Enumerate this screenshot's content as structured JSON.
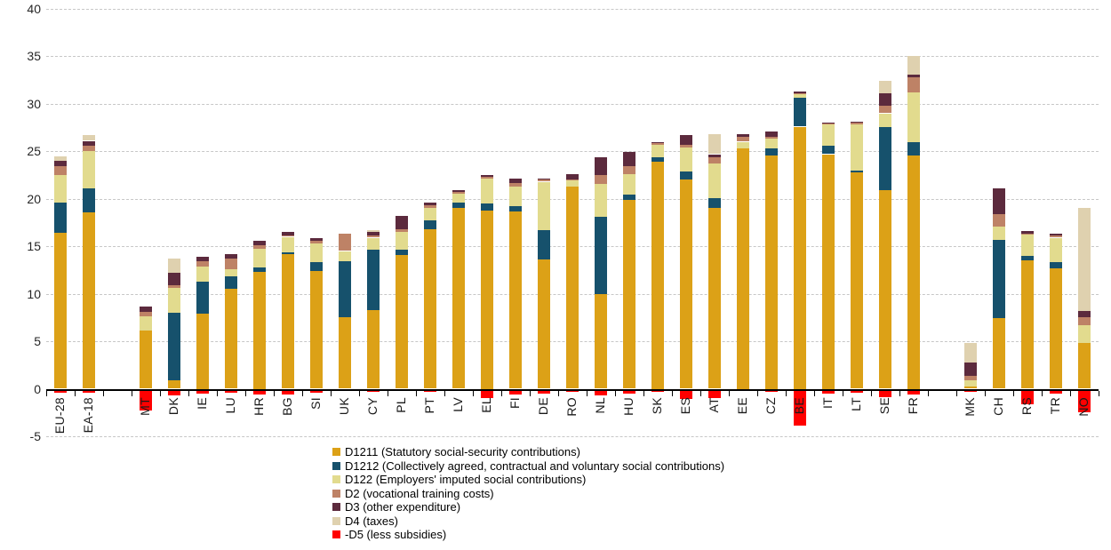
{
  "chart_data": {
    "type": "bar",
    "stacked": true,
    "title": "",
    "xlabel": "",
    "ylabel": "",
    "ylim": [
      -5,
      40
    ],
    "y_ticks": [
      40,
      35,
      30,
      25,
      20,
      15,
      10,
      5,
      0,
      -5
    ],
    "grid": "dashed-horizontal",
    "legend_position": "bottom",
    "categories": [
      "EU-28",
      "EA-18",
      "MT",
      "DK",
      "IE",
      "LU",
      "HR",
      "BG",
      "SI",
      "UK",
      "CY",
      "PL",
      "PT",
      "LV",
      "EL",
      "FI",
      "DE",
      "RO",
      "NL",
      "HU",
      "SK",
      "ES",
      "AT",
      "EE",
      "CZ",
      "BE",
      "IT",
      "LT",
      "SE",
      "FR",
      "MK",
      "CH",
      "RS",
      "TR",
      "NO"
    ],
    "gap_after": [
      "EA-18",
      "FR"
    ],
    "series": [
      {
        "name": "D1211 (Statutory social-security contributions)",
        "color": "#DCA117",
        "values": [
          16.4,
          18.6,
          6.1,
          0.9,
          7.9,
          10.5,
          12.3,
          14.2,
          12.4,
          7.5,
          8.3,
          14.1,
          16.8,
          19.0,
          18.8,
          18.7,
          13.6,
          21.3,
          10.0,
          19.9,
          23.9,
          22.0,
          19.0,
          25.3,
          24.6,
          27.6,
          24.7,
          22.8,
          20.9,
          24.6,
          0.2,
          7.4,
          13.5,
          12.7,
          4.8
        ]
      },
      {
        "name": "D1212 (Collectively agreed, contractual and voluntary social contributions)",
        "color": "#16516C",
        "values": [
          3.2,
          2.5,
          0,
          7.1,
          3.4,
          1.3,
          0.5,
          0.2,
          0.9,
          5.9,
          6.3,
          0.5,
          0.9,
          0.6,
          0.7,
          0.5,
          3.1,
          0,
          8.1,
          0.5,
          0.5,
          0.9,
          1.1,
          0,
          0.7,
          3.0,
          0.9,
          0.2,
          6.7,
          1.4,
          0,
          8.3,
          0.5,
          0.6,
          0
        ]
      },
      {
        "name": "D122 (Employers' imputed social contributions)",
        "color": "#E2DB8E",
        "values": [
          2.9,
          3.9,
          1.5,
          2.6,
          1.6,
          0.8,
          1.9,
          1.6,
          2.0,
          1.1,
          1.3,
          1.9,
          1.3,
          0.9,
          2.6,
          2.1,
          5.1,
          0.6,
          3.5,
          2.2,
          1.3,
          2.5,
          3.6,
          0.7,
          1.0,
          0.4,
          2.2,
          4.8,
          1.4,
          5.2,
          0.7,
          1.4,
          2.2,
          2.6,
          1.9
        ]
      },
      {
        "name": "D2 (vocational training costs)",
        "color": "#BE8266",
        "values": [
          0.9,
          0.6,
          0.5,
          0.3,
          0.5,
          1.1,
          0.4,
          0.1,
          0.3,
          1.8,
          0.2,
          0.3,
          0.3,
          0.2,
          0.2,
          0.4,
          0.2,
          0.1,
          0.9,
          0.8,
          0.2,
          0.3,
          0.7,
          0.5,
          0.2,
          0.1,
          0.1,
          0.2,
          0.8,
          1.6,
          0.5,
          1.3,
          0.1,
          0.2,
          0.8
        ]
      },
      {
        "name": "D3 (other expenditure)",
        "color": "#5C2A3D",
        "values": [
          0.6,
          0.5,
          0.6,
          1.3,
          0.5,
          0.5,
          0.5,
          0.4,
          0.3,
          0,
          0.4,
          1.4,
          0.3,
          0.2,
          0.2,
          0.4,
          0.1,
          0.6,
          1.9,
          1.5,
          0.1,
          1.0,
          0.3,
          0.3,
          0.6,
          0.2,
          0.1,
          0.1,
          1.3,
          0.3,
          1.4,
          2.7,
          0.3,
          0.2,
          0.7
        ]
      },
      {
        "name": "D4 (taxes)",
        "color": "#DFD1AF",
        "values": [
          0.5,
          0.6,
          0,
          1.5,
          0,
          0,
          0,
          0,
          0,
          0,
          0.2,
          0,
          0,
          0,
          0,
          0,
          0,
          0,
          0,
          0,
          0,
          0,
          2.1,
          0,
          0,
          0,
          0,
          0,
          1.3,
          1.9,
          2.0,
          0,
          0,
          0,
          10.8
        ]
      },
      {
        "name": "-D5 (less subsidies)",
        "color": "#FF0000",
        "values": [
          -0.3,
          -0.3,
          -2.2,
          -0.6,
          -0.4,
          -0.3,
          -0.5,
          -0.5,
          -0.3,
          0,
          -0.2,
          -0.1,
          -0.2,
          -0.1,
          -0.9,
          -0.5,
          -0.4,
          -0.2,
          -0.6,
          -0.4,
          -0.2,
          -1.0,
          -0.9,
          -0.1,
          -0.2,
          -3.8,
          -0.4,
          -0.3,
          -0.8,
          -0.5,
          -0.2,
          0,
          -1.5,
          -0.4,
          -2.4
        ]
      }
    ],
    "colors": {
      "gridline": "#c7c7c7",
      "axis": "#000000",
      "tick_text": "#262626",
      "category_text": "#1a1a1a"
    }
  }
}
